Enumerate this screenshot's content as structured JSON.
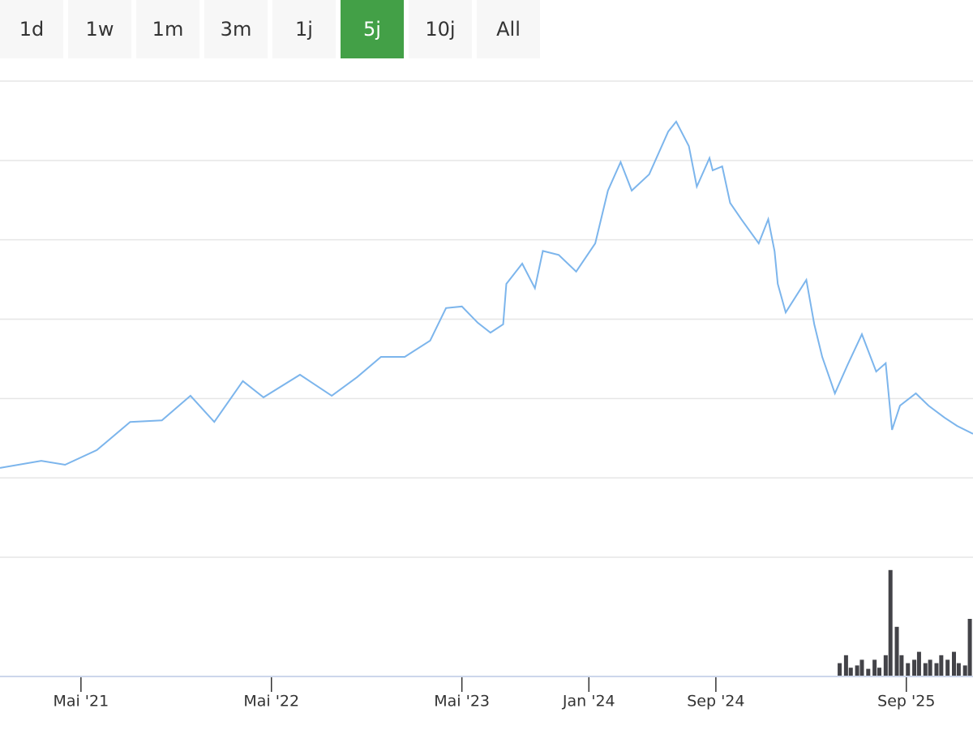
{
  "buttons": [
    "1d",
    "1w",
    "1m",
    "3m",
    "1j",
    "5j",
    "10j",
    "All"
  ],
  "selected": "5j",
  "chart_data": {
    "type": "line",
    "xlim": [
      -1.1,
      60.2
    ],
    "xticks": [
      {
        "value": 4,
        "label": "Mai '21"
      },
      {
        "value": 16,
        "label": "Mai '22"
      },
      {
        "value": 28,
        "label": "Mai '23"
      },
      {
        "value": 36,
        "label": "Jan '24"
      },
      {
        "value": 44,
        "label": "Sep '24"
      },
      {
        "value": 56,
        "label": "Sep '25"
      }
    ],
    "ylim": [
      0,
      120
    ],
    "yticks": [
      0,
      20,
      40,
      60,
      80,
      100,
      120
    ],
    "grid": true,
    "y2lim": [
      0,
      100
    ],
    "series": [
      {
        "type": "line",
        "color": "#7cb5ec",
        "x": [
          -1.1,
          1.5,
          3.0,
          5.0,
          7.1,
          9.1,
          10.9,
          12.4,
          14.2,
          15.5,
          17.8,
          19.8,
          21.4,
          22.9,
          24.4,
          26.0,
          27.0,
          28.0,
          29.0,
          29.8,
          30.6,
          30.8,
          31.8,
          32.6,
          33.1,
          34.1,
          35.2,
          36.4,
          37.2,
          38.0,
          38.7,
          39.8,
          41.0,
          41.5,
          42.3,
          42.8,
          43.6,
          43.8,
          44.4,
          44.9,
          45.6,
          46.7,
          47.3,
          47.7,
          47.9,
          48.4,
          49.7,
          50.2,
          50.7,
          51.5,
          52.3,
          53.2,
          54.1,
          54.7,
          55.1,
          55.6,
          56.6,
          57.4,
          58.4,
          59.2,
          60.2
        ],
        "values": [
          22.5,
          24.3,
          23.3,
          27,
          34.1,
          34.5,
          40.7,
          34.1,
          44.4,
          40.3,
          46,
          40.7,
          45.4,
          50.5,
          50.5,
          54.6,
          62.8,
          63.2,
          59.1,
          56.6,
          58.7,
          68.9,
          74,
          67.8,
          77.2,
          76.2,
          72,
          79.1,
          92.4,
          99.6,
          92.4,
          96.5,
          107.3,
          109.8,
          103.6,
          93.4,
          100.6,
          97.5,
          98.5,
          89.3,
          85.2,
          79.1,
          85.2,
          77.1,
          68.9,
          61.7,
          69.9,
          58.7,
          50.5,
          41.3,
          48.5,
          56.2,
          46.8,
          48.9,
          32.1,
          38.2,
          41.3,
          38.2,
          35.2,
          33.1,
          31.1
        ]
      },
      {
        "type": "bar",
        "axis": "y2",
        "color": "#434348",
        "x": [
          51.8,
          52.2,
          52.5,
          52.9,
          53.2,
          53.6,
          54.0,
          54.3,
          54.7,
          55.0,
          55.4,
          55.7,
          56.1,
          56.5,
          56.8,
          57.2,
          57.5,
          57.9,
          58.2,
          58.6,
          59.0,
          59.3,
          59.7,
          60.0
        ],
        "values": [
          11,
          18,
          7,
          9,
          14,
          6,
          14,
          7,
          18,
          93,
          43,
          18,
          11,
          14,
          21,
          11,
          14,
          11,
          18,
          14,
          21,
          11,
          9,
          50
        ]
      }
    ]
  }
}
